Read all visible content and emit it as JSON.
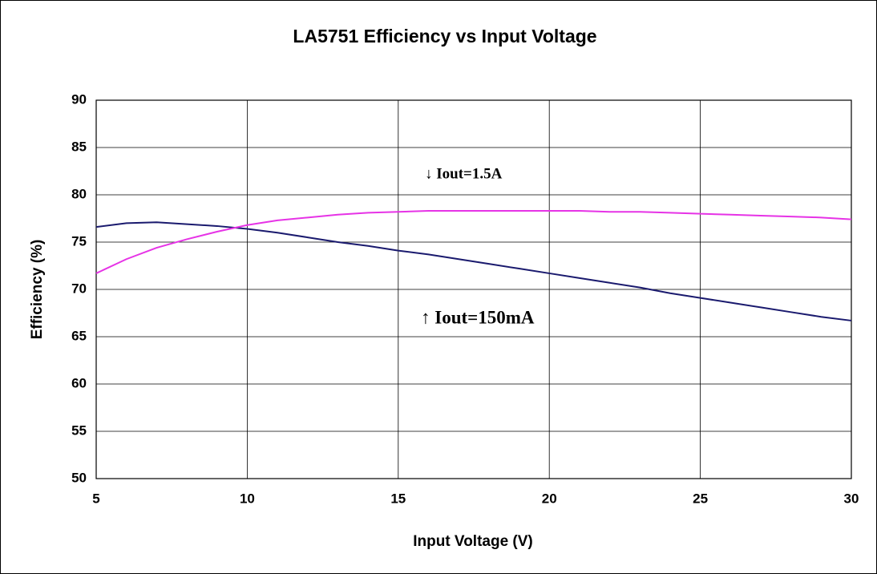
{
  "chart_data": {
    "type": "line",
    "title": "LA5751 Efficiency vs Input Voltage",
    "x_label": "Input Voltage (V)",
    "y_label": "Efficiency (%)",
    "x": [
      5,
      6,
      7,
      8,
      9,
      10,
      11,
      12,
      13,
      14,
      15,
      16,
      17,
      18,
      19,
      20,
      21,
      22,
      23,
      24,
      25,
      26,
      27,
      28,
      29,
      30
    ],
    "series": [
      {
        "color": "#1a1a6e",
        "values": [
          76.6,
          77.0,
          77.1,
          76.9,
          76.7,
          76.4,
          76.0,
          75.5,
          75.0,
          74.6,
          74.1,
          73.7,
          73.2,
          72.7,
          72.2,
          71.7,
          71.2,
          70.7,
          70.2,
          69.6,
          69.1,
          68.6,
          68.1,
          67.6,
          67.1,
          66.7
        ]
      },
      {
        "color": "#e633e6",
        "values": [
          71.7,
          73.2,
          74.4,
          75.3,
          76.1,
          76.8,
          77.3,
          77.6,
          77.9,
          78.1,
          78.2,
          78.3,
          78.3,
          78.3,
          78.3,
          78.3,
          78.3,
          78.2,
          78.2,
          78.1,
          78.0,
          77.9,
          77.8,
          77.7,
          77.6,
          77.4
        ]
      }
    ],
    "annotations": [
      "↓ Iout=1.5A",
      "↑ Iout=150mA"
    ],
    "xlim": [
      5,
      30
    ],
    "xticks": [
      5,
      10,
      15,
      20,
      25,
      30
    ],
    "ylim": [
      50,
      90
    ],
    "yticks": [
      50,
      55,
      60,
      65,
      70,
      75,
      80,
      85,
      90
    ],
    "grid": true
  }
}
